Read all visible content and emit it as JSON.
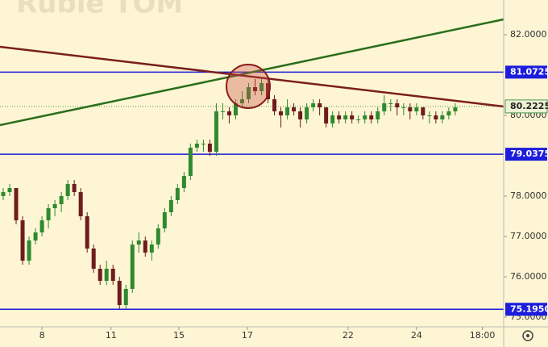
{
  "chart_data": {
    "type": "candlestick",
    "title": "Ruble TOM",
    "xlim": [
      0,
      78
    ],
    "xticks": [
      {
        "value": 6.5,
        "label": "8"
      },
      {
        "value": 17.2,
        "label": "11"
      },
      {
        "value": 27.7,
        "label": "15"
      },
      {
        "value": 38.3,
        "label": "17"
      },
      {
        "value": 53.9,
        "label": "22"
      },
      {
        "value": 64.5,
        "label": "24"
      },
      {
        "value": 74.7,
        "label": "18:00"
      }
    ],
    "ylim": [
      74.76,
      82.86
    ],
    "yticks": [
      {
        "value": 82,
        "label": "82.0000"
      },
      {
        "value": 80,
        "label": "80.0000"
      },
      {
        "value": 78,
        "label": "78.0000"
      },
      {
        "value": 77,
        "label": "77.0000"
      },
      {
        "value": 76,
        "label": "76.0000"
      },
      {
        "value": 75,
        "label": "75.0000"
      }
    ],
    "up_color": "#2f8a2f",
    "down_color": "#6e1c1c",
    "series": [
      {
        "candles": [
          [
            78.0,
            78.2,
            77.9,
            78.1
          ],
          [
            78.1,
            78.3,
            78.0,
            78.2
          ],
          [
            78.2,
            78.2,
            77.3,
            77.4
          ],
          [
            77.4,
            77.5,
            76.3,
            76.4
          ],
          [
            76.4,
            77.0,
            76.3,
            76.9
          ],
          [
            76.9,
            77.2,
            76.8,
            77.1
          ],
          [
            77.1,
            77.5,
            77.0,
            77.4
          ],
          [
            77.4,
            77.8,
            77.2,
            77.7
          ],
          [
            77.7,
            77.9,
            77.5,
            77.8
          ],
          [
            77.8,
            78.1,
            77.6,
            78.0
          ],
          [
            78.0,
            78.4,
            77.9,
            78.3
          ],
          [
            78.3,
            78.4,
            78.0,
            78.1
          ],
          [
            78.1,
            78.2,
            77.4,
            77.5
          ],
          [
            77.5,
            77.6,
            76.6,
            76.7
          ],
          [
            76.7,
            76.8,
            76.1,
            76.2
          ],
          [
            76.2,
            76.3,
            75.8,
            75.9
          ],
          [
            75.9,
            76.4,
            75.8,
            76.2
          ],
          [
            76.2,
            76.3,
            75.8,
            75.9
          ],
          [
            75.9,
            76.0,
            75.2,
            75.3
          ],
          [
            75.3,
            75.8,
            75.2,
            75.7
          ],
          [
            75.7,
            76.9,
            75.6,
            76.8
          ],
          [
            76.8,
            77.1,
            76.6,
            76.9
          ],
          [
            76.9,
            77.0,
            76.5,
            76.6
          ],
          [
            76.6,
            76.9,
            76.4,
            76.8
          ],
          [
            76.8,
            77.3,
            76.7,
            77.2
          ],
          [
            77.2,
            77.7,
            77.1,
            77.6
          ],
          [
            77.6,
            78.0,
            77.5,
            77.9
          ],
          [
            77.9,
            78.3,
            77.8,
            78.2
          ],
          [
            78.2,
            78.6,
            78.1,
            78.5
          ],
          [
            78.5,
            79.3,
            78.4,
            79.2
          ],
          [
            79.2,
            79.4,
            79.1,
            79.3
          ],
          [
            79.3,
            79.4,
            79.1,
            79.3
          ],
          [
            79.3,
            79.4,
            79.0,
            79.1
          ],
          [
            79.1,
            80.3,
            79.0,
            80.1
          ],
          [
            80.1,
            80.3,
            79.9,
            80.1
          ],
          [
            80.1,
            80.2,
            79.8,
            80.0
          ],
          [
            80.0,
            80.4,
            79.9,
            80.3
          ],
          [
            80.3,
            80.6,
            80.2,
            80.4
          ],
          [
            80.4,
            80.8,
            80.3,
            80.7
          ],
          [
            80.7,
            80.9,
            80.5,
            80.6
          ],
          [
            80.6,
            80.9,
            80.5,
            80.8
          ],
          [
            80.8,
            80.9,
            80.3,
            80.4
          ],
          [
            80.4,
            80.5,
            80.0,
            80.1
          ],
          [
            80.1,
            80.2,
            79.7,
            80.0
          ],
          [
            80.0,
            80.4,
            79.9,
            80.2
          ],
          [
            80.2,
            80.3,
            80.0,
            80.1
          ],
          [
            80.1,
            80.2,
            79.7,
            79.9
          ],
          [
            79.9,
            80.3,
            79.8,
            80.2
          ],
          [
            80.2,
            80.4,
            80.1,
            80.3
          ],
          [
            80.3,
            80.4,
            80.0,
            80.2
          ],
          [
            80.2,
            80.2,
            79.7,
            79.8
          ],
          [
            79.8,
            80.1,
            79.7,
            80.0
          ],
          [
            80.0,
            80.1,
            79.8,
            79.9
          ],
          [
            79.9,
            80.1,
            79.8,
            80.0
          ],
          [
            80.0,
            80.1,
            79.8,
            79.9
          ],
          [
            79.9,
            80.0,
            79.8,
            79.9
          ],
          [
            79.9,
            80.1,
            79.8,
            80.0
          ],
          [
            80.0,
            80.1,
            79.8,
            79.9
          ],
          [
            79.9,
            80.2,
            79.8,
            80.1
          ],
          [
            80.1,
            80.5,
            80.0,
            80.3
          ],
          [
            80.3,
            80.4,
            80.1,
            80.3
          ],
          [
            80.3,
            80.4,
            80.0,
            80.2
          ],
          [
            80.2,
            80.3,
            80.0,
            80.2
          ],
          [
            80.2,
            80.3,
            79.9,
            80.1
          ],
          [
            80.1,
            80.3,
            80.0,
            80.2
          ],
          [
            80.2,
            80.2,
            79.9,
            80.0
          ],
          [
            80.0,
            80.1,
            79.8,
            80.0
          ],
          [
            80.0,
            80.1,
            79.8,
            79.9
          ],
          [
            79.9,
            80.1,
            79.8,
            80.0
          ],
          [
            80.0,
            80.2,
            79.9,
            80.1
          ],
          [
            80.1,
            80.3,
            80.0,
            80.2
          ]
        ]
      }
    ],
    "hlines": [
      {
        "value": 81.0725,
        "label": "81.0725",
        "color": "#1c1cdc"
      },
      {
        "value": 79.0375,
        "label": "79.0375",
        "color": "#1c1cdc"
      },
      {
        "value": 75.195,
        "label": "75.1950",
        "color": "#1c1cdc"
      }
    ],
    "last_price": {
      "value": 80.2225,
      "label": "80.2225",
      "color": "#4f9a4f"
    },
    "trendlines": [
      {
        "color": "#2a6e1e",
        "points": [
          [
            0,
            79.76
          ],
          [
            78,
            82.38
          ]
        ]
      },
      {
        "color": "#7a1e1e",
        "points": [
          [
            0,
            81.7
          ],
          [
            78,
            80.22
          ]
        ]
      }
    ]
  }
}
